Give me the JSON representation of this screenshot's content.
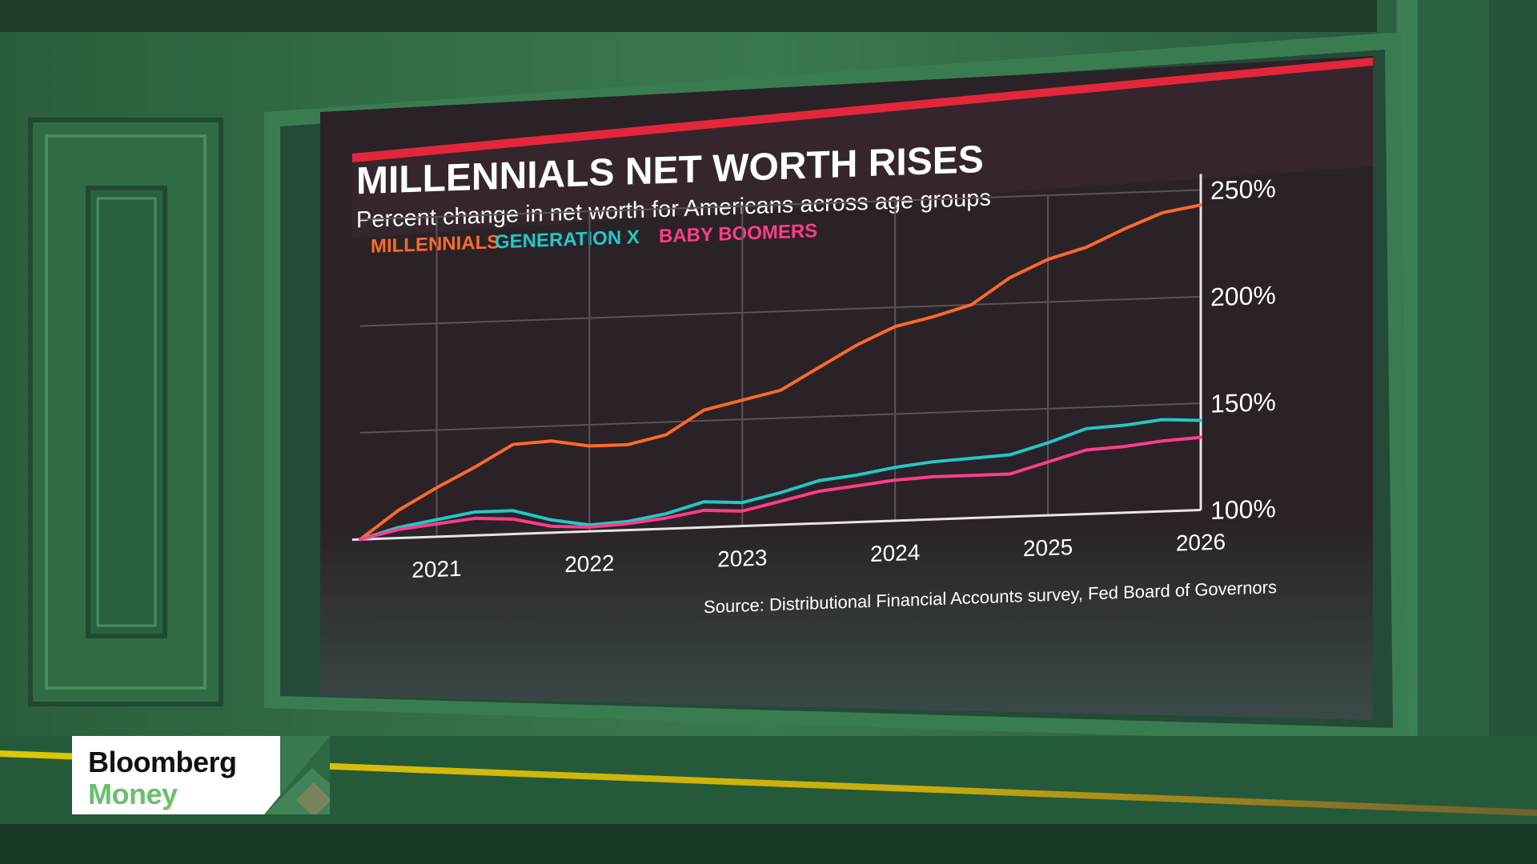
{
  "chart_data": {
    "type": "line",
    "title": "MILLENNIALS NET WORTH RISES",
    "subtitle": "Percent change in net worth for Americans across age groups",
    "source": "Source: Distributional Financial Accounts survey, Fed Board of Governors",
    "x_tick_labels": [
      "2021",
      "2022",
      "2023",
      "2024",
      "2025",
      "2026"
    ],
    "y_tick_labels": [
      "250%",
      "200%",
      "150%",
      "100%"
    ],
    "ylim": [
      100,
      250
    ],
    "xlim": [
      2020.5,
      2026.0
    ],
    "grid": true,
    "legend_position": "top-left",
    "series": [
      {
        "name": "MILLENNIALS",
        "color": "#ff6a2a",
        "x": [
          2020.5,
          2020.75,
          2021.0,
          2021.25,
          2021.5,
          2021.75,
          2022.0,
          2022.25,
          2022.5,
          2022.75,
          2023.0,
          2023.25,
          2023.5,
          2023.75,
          2024.0,
          2024.25,
          2024.5,
          2024.75,
          2025.0,
          2025.25,
          2025.5,
          2025.75,
          2026.0
        ],
        "values": [
          100,
          113,
          123,
          132,
          142,
          143,
          140,
          140,
          144,
          155,
          159,
          163,
          173,
          183,
          191,
          195,
          200,
          212,
          220,
          225,
          233,
          240,
          243
        ]
      },
      {
        "name": "GENERATION X",
        "color": "#22c8c8",
        "x": [
          2020.5,
          2020.75,
          2021.0,
          2021.25,
          2021.5,
          2021.75,
          2022.0,
          2022.25,
          2022.5,
          2022.75,
          2023.0,
          2023.25,
          2023.5,
          2023.75,
          2024.0,
          2024.25,
          2024.5,
          2024.75,
          2025.0,
          2025.25,
          2025.5,
          2025.75,
          2026.0
        ],
        "values": [
          100,
          105,
          108,
          111,
          111,
          106,
          103,
          104,
          107,
          112,
          111,
          115,
          120,
          122,
          125,
          127,
          128,
          129,
          134,
          140,
          141,
          143,
          142
        ]
      },
      {
        "name": "BABY BOOMERS",
        "color": "#ff3d8a",
        "x": [
          2020.5,
          2020.75,
          2021.0,
          2021.25,
          2021.5,
          2021.75,
          2022.0,
          2022.25,
          2022.5,
          2022.75,
          2023.0,
          2023.25,
          2023.5,
          2023.75,
          2024.0,
          2024.25,
          2024.5,
          2024.75,
          2025.0,
          2025.25,
          2025.5,
          2025.75,
          2026.0
        ],
        "values": [
          100,
          104,
          106,
          108,
          107,
          103,
          102,
          103,
          105,
          108,
          107,
          111,
          115,
          117,
          119,
          120,
          120,
          120,
          125,
          130,
          131,
          133,
          134
        ]
      }
    ]
  },
  "brand": {
    "line1": "Bloomberg",
    "line2": "Money"
  },
  "colors": {
    "panel_green": "#2e6b44",
    "screen_bg": "#2a2226",
    "accent_red": "#e3263b",
    "axis": "#e8e4e6",
    "grid": "#5b5258",
    "ticker_gold": "#f2d400"
  }
}
